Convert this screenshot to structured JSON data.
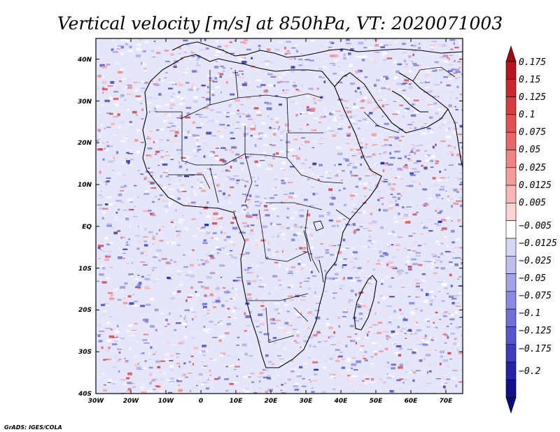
{
  "title": "Vertical velocity [m/s] at 850hPa, VT: 2020071003",
  "credit": "GrADS: IGES/COLA",
  "map": {
    "lon_range": [
      -30,
      75
    ],
    "lat_range": [
      -40,
      45
    ],
    "lon_ticks": [
      "30W",
      "20W",
      "10W",
      "0",
      "10E",
      "20E",
      "30E",
      "40E",
      "50E",
      "60E",
      "70E"
    ],
    "lat_ticks": [
      "40N",
      "30N",
      "20N",
      "10N",
      "EQ",
      "10S",
      "20S",
      "30S",
      "40S"
    ]
  },
  "colorbar": {
    "labels": [
      "0.175",
      "0.15",
      "0.125",
      "0.1",
      "0.075",
      "0.05",
      "0.025",
      "0.0125",
      "0.005",
      "−0.005",
      "−0.0125",
      "−0.025",
      "−0.05",
      "−0.075",
      "−0.1",
      "−0.125",
      "−0.175",
      "−0.2"
    ],
    "colors": [
      "#b8141e",
      "#c8282e",
      "#d63c40",
      "#e05256",
      "#e8686a",
      "#ef8284",
      "#f59c9c",
      "#f9b6b6",
      "#fcd2d2",
      "#ffffff",
      "#d6d6f7",
      "#bebef1",
      "#a4a4ea",
      "#8a8ae2",
      "#7070d8",
      "#5656cc",
      "#3c3cbc",
      "#2424a8",
      "#10108c"
    ]
  }
}
